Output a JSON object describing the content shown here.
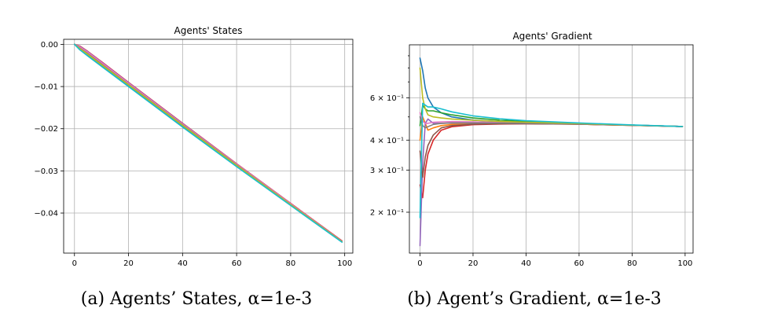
{
  "chart_data": [
    {
      "type": "line",
      "title": "Agents' States",
      "caption": "(a) Agents’ States, α=1e-3",
      "xlim": [
        -4,
        103
      ],
      "ylim": [
        -0.0495,
        0.0012
      ],
      "xticks": [
        0,
        20,
        40,
        60,
        80,
        100
      ],
      "xtick_labels": [
        "0",
        "20",
        "40",
        "60",
        "80",
        "100"
      ],
      "yticks": [
        0.0,
        -0.01,
        -0.02,
        -0.03,
        -0.04
      ],
      "ytick_labels": [
        "0.00",
        "−0.01",
        "−0.02",
        "−0.03",
        "−0.04"
      ],
      "grid": true,
      "series": [
        {
          "color": "#1f77b4",
          "x": [
            0,
            2,
            5,
            10,
            20,
            40,
            60,
            80,
            99
          ],
          "y": [
            0.0,
            -0.0012,
            -0.0027,
            -0.0051,
            -0.0099,
            -0.0195,
            -0.0289,
            -0.0381,
            -0.0468
          ]
        },
        {
          "color": "#ff7f0e",
          "x": [
            0,
            2,
            5,
            10,
            20,
            40,
            60,
            80,
            99
          ],
          "y": [
            0.0,
            -0.0008,
            -0.0022,
            -0.0046,
            -0.0094,
            -0.019,
            -0.0285,
            -0.0379,
            -0.0467
          ]
        },
        {
          "color": "#2ca02c",
          "x": [
            0,
            2,
            5,
            10,
            20,
            40,
            60,
            80,
            99
          ],
          "y": [
            0.0,
            -0.0006,
            -0.002,
            -0.0044,
            -0.0093,
            -0.0189,
            -0.0285,
            -0.0378,
            -0.0467
          ]
        },
        {
          "color": "#d62728",
          "x": [
            0,
            2,
            5,
            10,
            20,
            40,
            60,
            80,
            99
          ],
          "y": [
            0.0,
            -0.0004,
            -0.0017,
            -0.0041,
            -0.009,
            -0.0187,
            -0.0283,
            -0.0377,
            -0.0466
          ]
        },
        {
          "color": "#9467bd",
          "x": [
            0,
            2,
            5,
            10,
            20,
            40,
            60,
            80,
            99
          ],
          "y": [
            0.0,
            -0.0005,
            -0.0018,
            -0.0042,
            -0.0091,
            -0.0188,
            -0.0284,
            -0.0378,
            -0.0467
          ]
        },
        {
          "color": "#8c564b",
          "x": [
            0,
            2,
            5,
            10,
            20,
            40,
            60,
            80,
            99
          ],
          "y": [
            0.0,
            -0.0007,
            -0.0021,
            -0.0045,
            -0.0093,
            -0.019,
            -0.0285,
            -0.0379,
            -0.0467
          ]
        },
        {
          "color": "#e377c2",
          "x": [
            0,
            2,
            5,
            10,
            20,
            40,
            60,
            80,
            99
          ],
          "y": [
            0.0,
            -0.0006,
            -0.0019,
            -0.0043,
            -0.0092,
            -0.0189,
            -0.0284,
            -0.0378,
            -0.0467
          ]
        },
        {
          "color": "#7f7f7f",
          "x": [
            0,
            2,
            5,
            10,
            20,
            40,
            60,
            80,
            99
          ],
          "y": [
            0.0,
            -0.0009,
            -0.0023,
            -0.0047,
            -0.0095,
            -0.0191,
            -0.0286,
            -0.038,
            -0.0468
          ]
        },
        {
          "color": "#bcbd22",
          "x": [
            0,
            2,
            5,
            10,
            20,
            40,
            60,
            80,
            99
          ],
          "y": [
            0.0,
            -0.001,
            -0.0024,
            -0.0048,
            -0.0096,
            -0.0192,
            -0.0287,
            -0.038,
            -0.0468
          ]
        },
        {
          "color": "#17becf",
          "x": [
            0,
            2,
            5,
            10,
            20,
            40,
            60,
            80,
            99
          ],
          "y": [
            0.0,
            -0.0013,
            -0.0028,
            -0.0052,
            -0.01,
            -0.0196,
            -0.029,
            -0.0382,
            -0.0469
          ]
        }
      ]
    },
    {
      "type": "line",
      "title": "Agents' Gradient",
      "caption": "(b) Agent’s Gradient, α=1e-3",
      "yscale": "log",
      "xlim": [
        -4,
        103
      ],
      "ylim": [
        0.135,
        1.0
      ],
      "xticks": [
        0,
        20,
        40,
        60,
        80,
        100
      ],
      "xtick_labels": [
        "0",
        "20",
        "40",
        "60",
        "80",
        "100"
      ],
      "yticks": [
        0.2,
        0.3,
        0.4,
        0.6
      ],
      "ytick_labels": [
        "2 × 10⁻¹",
        "3 × 10⁻¹",
        "4 × 10⁻¹",
        "6 × 10⁻¹"
      ],
      "grid": true,
      "series": [
        {
          "color": "#1f77b4",
          "x": [
            0,
            1,
            2,
            3,
            5,
            8,
            12,
            20,
            30,
            40,
            60,
            80,
            99
          ],
          "y": [
            0.88,
            0.78,
            0.66,
            0.6,
            0.55,
            0.52,
            0.5,
            0.485,
            0.478,
            0.474,
            0.468,
            0.462,
            0.456
          ]
        },
        {
          "color": "#ff7f0e",
          "x": [
            0,
            1,
            2,
            3,
            5,
            8,
            12,
            20,
            30,
            40,
            60,
            80,
            99
          ],
          "y": [
            0.4,
            0.5,
            0.47,
            0.44,
            0.45,
            0.46,
            0.465,
            0.468,
            0.469,
            0.469,
            0.466,
            0.461,
            0.456
          ]
        },
        {
          "color": "#2ca02c",
          "x": [
            0,
            1,
            2,
            3,
            5,
            8,
            12,
            20,
            30,
            40,
            60,
            80,
            99
          ],
          "y": [
            0.46,
            0.56,
            0.54,
            0.53,
            0.53,
            0.52,
            0.51,
            0.495,
            0.485,
            0.478,
            0.47,
            0.462,
            0.456
          ]
        },
        {
          "color": "#d62728",
          "x": [
            0,
            1,
            2,
            3,
            5,
            8,
            12,
            20,
            30,
            40,
            60,
            80,
            99
          ],
          "y": [
            0.26,
            0.23,
            0.3,
            0.35,
            0.4,
            0.44,
            0.455,
            0.464,
            0.467,
            0.468,
            0.466,
            0.461,
            0.456
          ]
        },
        {
          "color": "#9467bd",
          "x": [
            0,
            1,
            2,
            3,
            5,
            8,
            12,
            20,
            30,
            40,
            60,
            80,
            99
          ],
          "y": [
            0.145,
            0.32,
            0.47,
            0.49,
            0.47,
            0.47,
            0.472,
            0.472,
            0.471,
            0.47,
            0.467,
            0.462,
            0.456
          ]
        },
        {
          "color": "#8c564b",
          "x": [
            0,
            1,
            2,
            3,
            5,
            8,
            12,
            20,
            30,
            40,
            60,
            80,
            99
          ],
          "y": [
            0.36,
            0.28,
            0.34,
            0.38,
            0.42,
            0.45,
            0.46,
            0.466,
            0.468,
            0.468,
            0.466,
            0.461,
            0.456
          ]
        },
        {
          "color": "#e377c2",
          "x": [
            0,
            1,
            2,
            3,
            5,
            8,
            12,
            20,
            30,
            40,
            60,
            80,
            99
          ],
          "y": [
            0.52,
            0.48,
            0.47,
            0.47,
            0.475,
            0.477,
            0.478,
            0.477,
            0.474,
            0.472,
            0.467,
            0.462,
            0.456
          ]
        },
        {
          "color": "#7f7f7f",
          "x": [
            0,
            1,
            2,
            3,
            5,
            8,
            12,
            20,
            30,
            40,
            60,
            80,
            99
          ],
          "y": [
            0.5,
            0.46,
            0.45,
            0.455,
            0.465,
            0.47,
            0.472,
            0.472,
            0.471,
            0.47,
            0.467,
            0.462,
            0.456
          ]
        },
        {
          "color": "#bcbd22",
          "x": [
            0,
            1,
            2,
            3,
            5,
            8,
            12,
            20,
            30,
            40,
            60,
            80,
            99
          ],
          "y": [
            0.8,
            0.6,
            0.54,
            0.51,
            0.5,
            0.495,
            0.49,
            0.484,
            0.479,
            0.475,
            0.469,
            0.462,
            0.456
          ]
        },
        {
          "color": "#17becf",
          "x": [
            0,
            1,
            2,
            3,
            5,
            8,
            12,
            20,
            30,
            40,
            60,
            80,
            99
          ],
          "y": [
            0.19,
            0.57,
            0.56,
            0.55,
            0.55,
            0.54,
            0.525,
            0.505,
            0.491,
            0.482,
            0.472,
            0.463,
            0.456
          ]
        }
      ]
    }
  ]
}
